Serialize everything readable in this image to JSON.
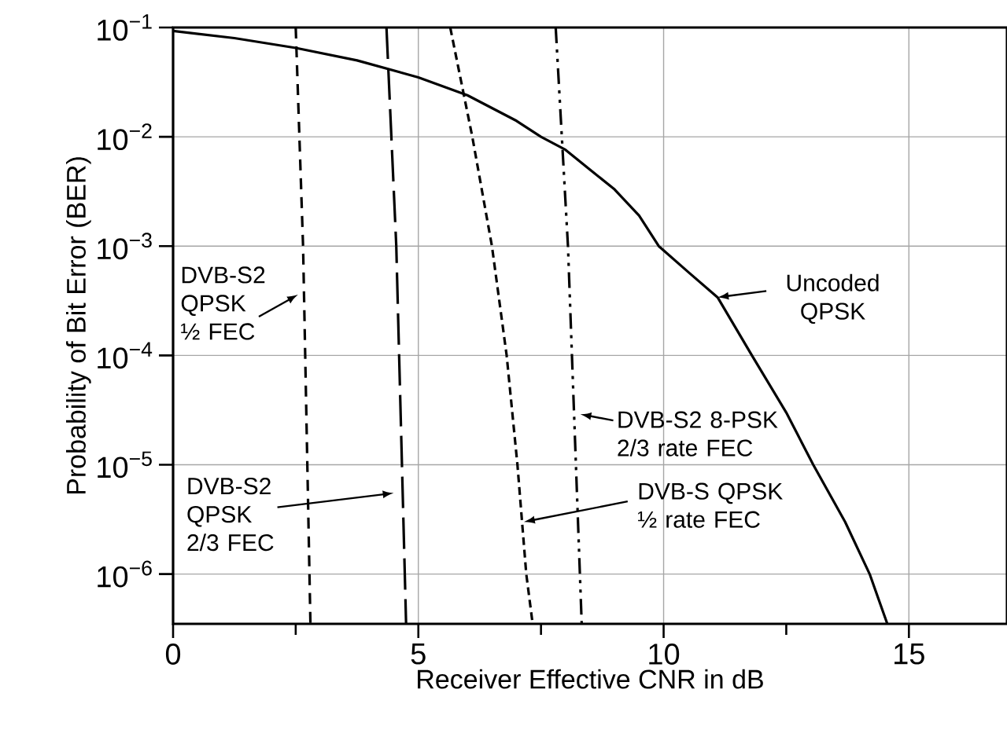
{
  "chart_data": {
    "type": "line",
    "xlabel": "Receiver Effective CNR in dB",
    "ylabel": "Probability of Bit Error (BER)",
    "log": "y",
    "grid": true,
    "marker": "none",
    "xlim": [
      0,
      17
    ],
    "xticks": [
      0,
      {
        "value": 2.5,
        "label": null
      },
      5,
      {
        "value": 7.5,
        "label": null
      },
      10,
      {
        "value": 12.5,
        "label": null
      },
      15
    ],
    "ylim": [
      3.5e-07,
      0.1
    ],
    "yticks": [
      {
        "value": 1e-06,
        "label": "10$^{−6}$"
      },
      {
        "value": 1e-05,
        "label": "10$^{−5}$"
      },
      {
        "value": 0.0001,
        "label": "10$^{−4}$"
      },
      {
        "value": 0.001,
        "label": "10$^{−3}$"
      },
      {
        "value": 0.01,
        "label": "10$^{−2}$"
      },
      {
        "value": 0.1,
        "label": "10$^{−1}$"
      }
    ],
    "series": [
      {
        "color": "#000000",
        "line_style": "solid",
        "x": [
          0,
          1.25,
          2.5,
          3.75,
          5,
          6,
          7,
          7.5,
          8,
          8.5,
          9,
          9.5,
          9.9,
          10.5,
          11.1,
          11.8,
          12.5,
          13.05,
          13.7,
          14.2,
          14.56
        ],
        "values": [
          0.093,
          0.08,
          0.065,
          0.05,
          0.035,
          0.024,
          0.014,
          0.01,
          0.0076,
          0.005,
          0.0033,
          0.0019,
          0.001,
          0.00058,
          0.00034,
          0.0001,
          3e-05,
          1e-05,
          3e-06,
          1e-06,
          3.5e-07
        ]
      },
      {
        "color": "#000000",
        "line_style": "dashed",
        "x": [
          2.5,
          2.65,
          2.8
        ],
        "values": [
          0.1,
          0.001,
          3.5e-07
        ]
      },
      {
        "color": "#000000",
        "line_style": "dashed",
        "x": [
          4.35,
          4.55,
          4.75
        ],
        "values": [
          0.1,
          0.001,
          3.5e-07
        ]
      },
      {
        "color": "#000000",
        "line_style": "dashed",
        "x": [
          5.65,
          6.1,
          6.5,
          6.8,
          7.02,
          7.2,
          7.33
        ],
        "values": [
          0.1,
          0.01,
          0.001,
          0.0001,
          1e-05,
          1e-06,
          3.5e-07
        ]
      },
      {
        "color": "#000000",
        "line_style": "dashed",
        "x": [
          7.8,
          8.05,
          8.33
        ],
        "values": [
          0.1,
          0.001,
          3.5e-07
        ]
      }
    ],
    "annotations": [
      {
        "text": "DVB-S2 QPSK ½ FEC",
        "x": 2.55,
        "y": 0.00036
      },
      {
        "text": "Uncoded QPSK",
        "x": 11.1,
        "y": 0.00034
      },
      {
        "text": "DVB-S2 8-PSK 2/3 rate FEC",
        "x": 8.3,
        "y": 2.9e-05
      },
      {
        "text": "DVB-S QPSK ½ rate FEC",
        "x": 7.15,
        "y": 3e-06
      },
      {
        "text": "DVB-S2 QPSK 2/3 FEC",
        "x": 4.5,
        "y": 5.5e-06
      }
    ]
  }
}
